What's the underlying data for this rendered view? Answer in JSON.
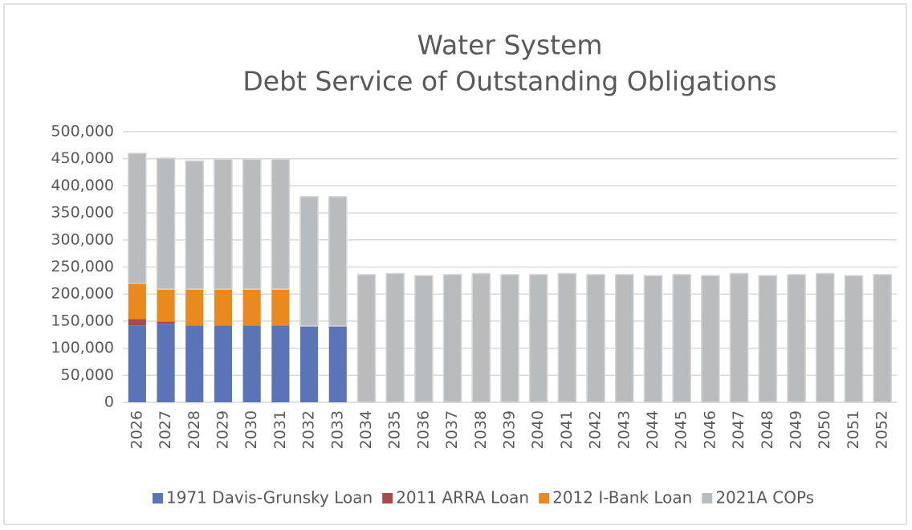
{
  "chart_data": {
    "type": "stacked_bar",
    "title": [
      "Water System",
      "Debt Service of Outstanding Obligations"
    ],
    "categories": [
      "2026",
      "2027",
      "2028",
      "2029",
      "2030",
      "2031",
      "2032",
      "2033",
      "2034",
      "2035",
      "2036",
      "2037",
      "2038",
      "2039",
      "2040",
      "2041",
      "2042",
      "2043",
      "2044",
      "2045",
      "2046",
      "2047",
      "2048",
      "2049",
      "2050",
      "2051",
      "2052"
    ],
    "series": [
      {
        "name": "1971 Davis-Grunsky Loan",
        "color": "#5b74b8",
        "values": [
          142000,
          145000,
          142000,
          142000,
          142000,
          142000,
          141000,
          141000,
          0,
          0,
          0,
          0,
          0,
          0,
          0,
          0,
          0,
          0,
          0,
          0,
          0,
          0,
          0,
          0,
          0,
          0,
          0
        ]
      },
      {
        "name": "2011 ARRA Loan",
        "color": "#a44c4c",
        "values": [
          12000,
          4000,
          0,
          0,
          0,
          0,
          0,
          0,
          0,
          0,
          0,
          0,
          0,
          0,
          0,
          0,
          0,
          0,
          0,
          0,
          0,
          0,
          0,
          0,
          0,
          0,
          0
        ]
      },
      {
        "name": "2012 I-Bank Loan",
        "color": "#ea8a1e",
        "values": [
          66000,
          60000,
          67000,
          67000,
          67000,
          67000,
          0,
          0,
          0,
          0,
          0,
          0,
          0,
          0,
          0,
          0,
          0,
          0,
          0,
          0,
          0,
          0,
          0,
          0,
          0,
          0,
          0
        ]
      },
      {
        "name": "2021A COPs",
        "color": "#b9bcbf",
        "values": [
          240000,
          242000,
          237000,
          240000,
          240000,
          240000,
          239000,
          239000,
          236000,
          238000,
          234000,
          236000,
          238000,
          236000,
          236000,
          238000,
          236000,
          236000,
          234000,
          236000,
          234000,
          238000,
          234000,
          236000,
          238000,
          234000,
          236000
        ]
      }
    ],
    "ylim": [
      0,
      500000
    ],
    "yticks": [
      0,
      {
        "value": 50000,
        "label": "50,000"
      },
      {
        "value": 100000,
        "label": "100,000"
      },
      {
        "value": 150000,
        "label": "150,000"
      },
      {
        "value": 200000,
        "label": "200,000"
      },
      {
        "value": 250000,
        "label": "250,000"
      },
      {
        "value": 300000,
        "label": "300,000"
      },
      {
        "value": 350000,
        "label": "350,000"
      },
      {
        "value": 400000,
        "label": "400,000"
      },
      {
        "value": 450000,
        "label": "450,000"
      },
      {
        "value": 500000,
        "label": "500,000"
      }
    ],
    "grid": true,
    "legend": "bottom"
  }
}
